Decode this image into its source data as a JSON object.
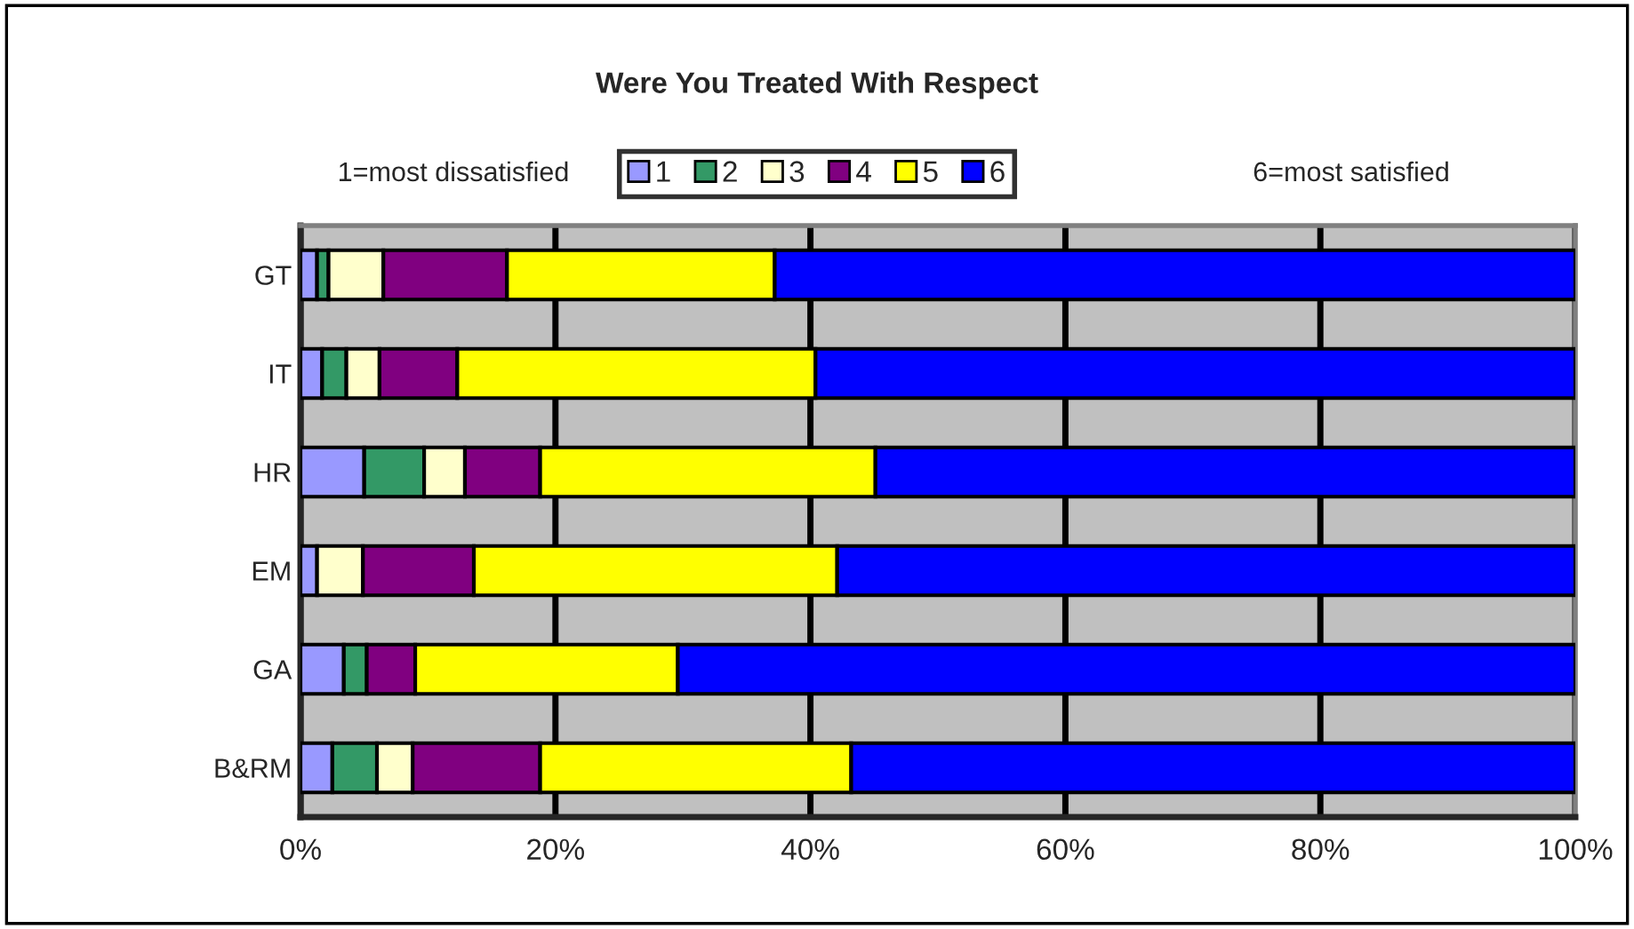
{
  "chart_data": {
    "type": "bar",
    "orientation": "horizontal",
    "stacked": true,
    "title": "Were You Treated With Respect",
    "annotations": [
      "1=most dissatisfied",
      "6=most satisfied"
    ],
    "categories": [
      "GT",
      "IT",
      "HR",
      "EM",
      "GA",
      "B&RM"
    ],
    "series": [
      {
        "name": "1",
        "color": "#9999ff",
        "values": [
          1.3,
          1.7,
          5.0,
          1.3,
          3.4,
          2.5
        ]
      },
      {
        "name": "2",
        "color": "#339966",
        "values": [
          0.9,
          1.9,
          4.7,
          null,
          1.8,
          3.5
        ]
      },
      {
        "name": "3",
        "color": "#ffffcc",
        "values": [
          4.3,
          2.6,
          3.2,
          3.6,
          null,
          2.8
        ]
      },
      {
        "name": "4",
        "color": "#800080",
        "values": [
          9.7,
          6.1,
          5.9,
          8.7,
          3.8,
          10.0
        ]
      },
      {
        "name": "5",
        "color": "#ffff00",
        "values": [
          21.0,
          28.1,
          26.3,
          28.5,
          20.6,
          24.4
        ]
      },
      {
        "name": "6",
        "color": "#0000ff",
        "values": [
          62.8,
          59.6,
          54.9,
          57.9,
          70.4,
          56.8
        ]
      }
    ],
    "xlim": [
      0,
      100
    ],
    "xticks": [
      {
        "value": 0,
        "label": "0%"
      },
      {
        "value": 20,
        "label": "20%"
      },
      {
        "value": 40,
        "label": "40%"
      },
      {
        "value": 60,
        "label": "60%"
      },
      {
        "value": 80,
        "label": "80%"
      },
      {
        "value": 100,
        "label": "100%"
      }
    ],
    "grid": "x",
    "legend": "top"
  }
}
